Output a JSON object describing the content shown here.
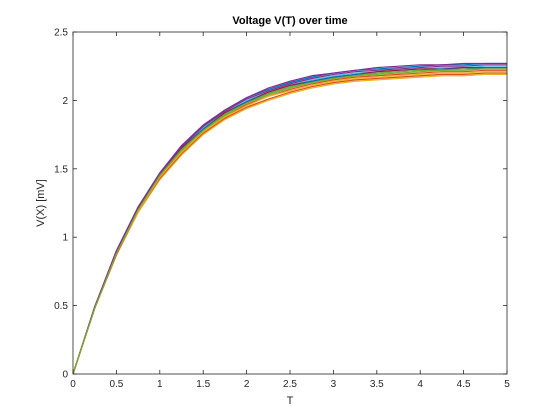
{
  "chart_data": {
    "type": "line",
    "title": "Voltage V(T) over time",
    "xlabel": "T",
    "ylabel": "V(X) [mV]",
    "xlim": [
      0,
      5
    ],
    "ylim": [
      0,
      2.5
    ],
    "xticks": [
      0,
      0.5,
      1,
      1.5,
      2,
      2.5,
      3,
      3.5,
      4,
      4.5,
      5
    ],
    "xtick_labels": [
      "0",
      "0.5",
      "1",
      "1.5",
      "2",
      "2.5",
      "3",
      "3.5",
      "4",
      "4.5",
      "5"
    ],
    "yticks": [
      0,
      0.5,
      1,
      1.5,
      2,
      2.5
    ],
    "ytick_labels": [
      "0",
      "0.5",
      "1",
      "1.5",
      "2",
      "2.5"
    ],
    "grid": false,
    "legend": "none",
    "x": [
      0,
      0.25,
      0.5,
      0.75,
      1,
      1.25,
      1.5,
      1.75,
      2,
      2.25,
      2.5,
      2.75,
      3,
      3.25,
      3.5,
      3.75,
      4,
      4.25,
      4.5,
      4.75,
      5
    ],
    "series": [
      {
        "color": "#0072BD",
        "values": [
          0,
          0.49,
          0.9,
          1.22,
          1.47,
          1.66,
          1.81,
          1.93,
          2.02,
          2.08,
          2.13,
          2.17,
          2.2,
          2.22,
          2.23,
          2.24,
          2.25,
          2.26,
          2.26,
          2.27,
          2.27
        ]
      },
      {
        "color": "#D95319",
        "values": [
          0,
          0.48,
          0.88,
          1.19,
          1.43,
          1.62,
          1.77,
          1.88,
          1.97,
          2.03,
          2.08,
          2.12,
          2.15,
          2.17,
          2.18,
          2.19,
          2.2,
          2.21,
          2.21,
          2.22,
          2.22
        ]
      },
      {
        "color": "#EDB120",
        "values": [
          0,
          0.48,
          0.87,
          1.18,
          1.42,
          1.6,
          1.75,
          1.86,
          1.94,
          2.0,
          2.05,
          2.09,
          2.12,
          2.14,
          2.15,
          2.16,
          2.17,
          2.18,
          2.18,
          2.19,
          2.19
        ]
      },
      {
        "color": "#7E2F8E",
        "values": [
          0,
          0.49,
          0.9,
          1.22,
          1.47,
          1.67,
          1.82,
          1.93,
          2.02,
          2.09,
          2.14,
          2.18,
          2.2,
          2.22,
          2.24,
          2.25,
          2.26,
          2.26,
          2.27,
          2.27,
          2.27
        ]
      },
      {
        "color": "#77AC30",
        "values": [
          0,
          0.48,
          0.88,
          1.2,
          1.44,
          1.63,
          1.78,
          1.89,
          1.98,
          2.04,
          2.09,
          2.13,
          2.16,
          2.18,
          2.19,
          2.2,
          2.21,
          2.22,
          2.22,
          2.23,
          2.23
        ]
      },
      {
        "color": "#4DBEEE",
        "values": [
          0,
          0.49,
          0.89,
          1.21,
          1.46,
          1.65,
          1.8,
          1.91,
          2.0,
          2.06,
          2.11,
          2.15,
          2.18,
          2.2,
          2.21,
          2.22,
          2.23,
          2.24,
          2.24,
          2.25,
          2.25
        ]
      },
      {
        "color": "#A2142F",
        "values": [
          0,
          0.49,
          0.89,
          1.21,
          1.45,
          1.65,
          1.79,
          1.91,
          1.99,
          2.06,
          2.11,
          2.14,
          2.17,
          2.19,
          2.21,
          2.22,
          2.23,
          2.23,
          2.24,
          2.24,
          2.24
        ]
      },
      {
        "color": "#0072BD",
        "values": [
          0,
          0.48,
          0.89,
          1.2,
          1.45,
          1.64,
          1.79,
          1.9,
          1.99,
          2.05,
          2.1,
          2.14,
          2.17,
          2.19,
          2.2,
          2.21,
          2.22,
          2.23,
          2.23,
          2.24,
          2.24
        ]
      },
      {
        "color": "#D95319",
        "values": [
          0,
          0.48,
          0.87,
          1.19,
          1.43,
          1.61,
          1.76,
          1.87,
          1.95,
          2.01,
          2.06,
          2.1,
          2.13,
          2.15,
          2.16,
          2.17,
          2.18,
          2.19,
          2.19,
          2.2,
          2.2
        ]
      },
      {
        "color": "#EDB120",
        "values": [
          0,
          0.48,
          0.88,
          1.19,
          1.44,
          1.62,
          1.77,
          1.88,
          1.96,
          2.03,
          2.07,
          2.11,
          2.14,
          2.16,
          2.17,
          2.18,
          2.19,
          2.2,
          2.2,
          2.21,
          2.21
        ]
      },
      {
        "color": "#7E2F8E",
        "values": [
          0,
          0.49,
          0.9,
          1.22,
          1.46,
          1.66,
          1.81,
          1.92,
          2.01,
          2.07,
          2.12,
          2.16,
          2.19,
          2.21,
          2.22,
          2.23,
          2.24,
          2.25,
          2.25,
          2.26,
          2.26
        ]
      },
      {
        "color": "#77AC30",
        "values": [
          0,
          0.48,
          0.88,
          1.2,
          1.45,
          1.64,
          1.78,
          1.9,
          1.98,
          2.05,
          2.1,
          2.13,
          2.16,
          2.18,
          2.2,
          2.21,
          2.22,
          2.22,
          2.23,
          2.23,
          2.23
        ]
      }
    ]
  }
}
